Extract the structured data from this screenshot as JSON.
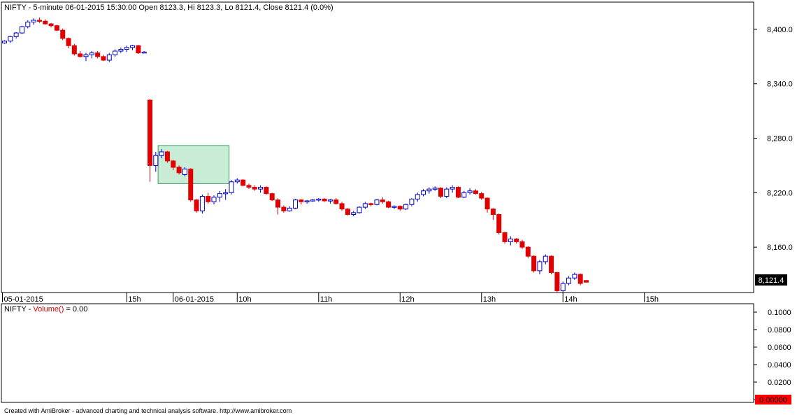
{
  "chart_data": [
    {
      "type": "candlestick",
      "header": "NIFTY - 5-minute 06-01-2015 15:30:00 Open 8123.3, Hi 8123.3, Lo 8121.4, Close 8121.4 (0.0%)",
      "ylim": [
        8110,
        8430
      ],
      "y_ticks": [
        8160,
        8220,
        8280,
        8340,
        8400
      ],
      "y_tick_labels": [
        "8,160.0",
        "8,220.0",
        "8,280.0",
        "8,340.0",
        "8,400.0"
      ],
      "last_price_label": "8,121.4",
      "x_labels": [
        {
          "bar": 0,
          "label": "05-01-2015"
        },
        {
          "bar": 21,
          "label": "15h"
        },
        {
          "bar": 29,
          "label": "06-01-2015"
        },
        {
          "bar": 40,
          "label": "10h"
        },
        {
          "bar": 54,
          "label": "11h"
        },
        {
          "bar": 68,
          "label": "12h"
        },
        {
          "bar": 82,
          "label": "13h"
        },
        {
          "bar": 96,
          "label": "14h"
        },
        {
          "bar": 110,
          "label": "15h"
        }
      ],
      "highlight_box": {
        "start_bar": 27,
        "end_bar": 38,
        "y_low": 8230,
        "y_high": 8272,
        "color": "#c8ecd6",
        "border": "#3aa05f"
      },
      "colors": {
        "up": "#0000c8",
        "down": "#e00000",
        "up_fill": "#ffffff"
      },
      "candles": [
        [
          8385,
          8388,
          8384,
          8387
        ],
        [
          8387,
          8393,
          8385,
          8392
        ],
        [
          8392,
          8397,
          8390,
          8396
        ],
        [
          8396,
          8404,
          8395,
          8403
        ],
        [
          8403,
          8410,
          8401,
          8408
        ],
        [
          8408,
          8412,
          8405,
          8410
        ],
        [
          8410,
          8413,
          8407,
          8409
        ],
        [
          8409,
          8411,
          8405,
          8406
        ],
        [
          8406,
          8407,
          8402,
          8404
        ],
        [
          8404,
          8405,
          8398,
          8399
        ],
        [
          8399,
          8401,
          8388,
          8390
        ],
        [
          8390,
          8391,
          8379,
          8382
        ],
        [
          8382,
          8384,
          8371,
          8373
        ],
        [
          8373,
          8376,
          8369,
          8370
        ],
        [
          8370,
          8374,
          8365,
          8372
        ],
        [
          8372,
          8376,
          8368,
          8374
        ],
        [
          8374,
          8376,
          8368,
          8370
        ],
        [
          8370,
          8372,
          8365,
          8366
        ],
        [
          8366,
          8374,
          8364,
          8372
        ],
        [
          8372,
          8378,
          8370,
          8376
        ],
        [
          8376,
          8380,
          8374,
          8378
        ],
        [
          8378,
          8382,
          8375,
          8380
        ],
        [
          8380,
          8383,
          8377,
          8382
        ],
        [
          8382,
          8383,
          8373,
          8374
        ],
        [
          8375,
          8376,
          8374,
          8375
        ],
        [
          8322,
          8323,
          8232,
          8250
        ],
        [
          8250,
          8265,
          8243,
          8261
        ],
        [
          8261,
          8268,
          8258,
          8265
        ],
        [
          8265,
          8266,
          8253,
          8255
        ],
        [
          8255,
          8256,
          8245,
          8248
        ],
        [
          8248,
          8250,
          8240,
          8242
        ],
        [
          8240,
          8248,
          8238,
          8246
        ],
        [
          8246,
          8247,
          8210,
          8212
        ],
        [
          8212,
          8213,
          8198,
          8200
        ],
        [
          8200,
          8218,
          8197,
          8216
        ],
        [
          8216,
          8220,
          8208,
          8210
        ],
        [
          8210,
          8217,
          8207,
          8215
        ],
        [
          8215,
          8222,
          8210,
          8219
        ],
        [
          8219,
          8224,
          8212,
          8220
        ],
        [
          8220,
          8234,
          8218,
          8232
        ],
        [
          8232,
          8236,
          8230,
          8234
        ],
        [
          8234,
          8235,
          8227,
          8228
        ],
        [
          8228,
          8230,
          8224,
          8226
        ],
        [
          8226,
          8228,
          8222,
          8224
        ],
        [
          8224,
          8228,
          8220,
          8226
        ],
        [
          8226,
          8227,
          8218,
          8219
        ],
        [
          8219,
          8220,
          8211,
          8212
        ],
        [
          8212,
          8214,
          8196,
          8204
        ],
        [
          8204,
          8206,
          8198,
          8200
        ],
        [
          8200,
          8205,
          8199,
          8203
        ],
        [
          8203,
          8213,
          8202,
          8212
        ],
        [
          8212,
          8213,
          8207,
          8210
        ],
        [
          8210,
          8212,
          8208,
          8211
        ],
        [
          8211,
          8213,
          8210,
          8212
        ],
        [
          8212,
          8214,
          8210,
          8213
        ],
        [
          8213,
          8214,
          8210,
          8211
        ],
        [
          8211,
          8213,
          8208,
          8212
        ],
        [
          8212,
          8214,
          8207,
          8208
        ],
        [
          8208,
          8210,
          8200,
          8202
        ],
        [
          8202,
          8203,
          8195,
          8196
        ],
        [
          8196,
          8200,
          8194,
          8198
        ],
        [
          8198,
          8205,
          8197,
          8204
        ],
        [
          8204,
          8210,
          8202,
          8208
        ],
        [
          8208,
          8209,
          8205,
          8207
        ],
        [
          8207,
          8213,
          8206,
          8212
        ],
        [
          8212,
          8215,
          8208,
          8210
        ],
        [
          8210,
          8211,
          8203,
          8204
        ],
        [
          8204,
          8206,
          8202,
          8205
        ],
        [
          8205,
          8206,
          8200,
          8202
        ],
        [
          8202,
          8208,
          8201,
          8207
        ],
        [
          8207,
          8214,
          8205,
          8213
        ],
        [
          8213,
          8220,
          8210,
          8218
        ],
        [
          8218,
          8224,
          8216,
          8222
        ],
        [
          8222,
          8226,
          8219,
          8224
        ],
        [
          8224,
          8227,
          8222,
          8225
        ],
        [
          8225,
          8226,
          8214,
          8216
        ],
        [
          8216,
          8226,
          8214,
          8224
        ],
        [
          8224,
          8228,
          8220,
          8226
        ],
        [
          8226,
          8227,
          8214,
          8215
        ],
        [
          8215,
          8222,
          8214,
          8220
        ],
        [
          8220,
          8225,
          8218,
          8222
        ],
        [
          8222,
          8224,
          8218,
          8219
        ],
        [
          8219,
          8221,
          8212,
          8214
        ],
        [
          8214,
          8215,
          8198,
          8202
        ],
        [
          8202,
          8203,
          8190,
          8196
        ],
        [
          8196,
          8197,
          8174,
          8176
        ],
        [
          8176,
          8177,
          8164,
          8166
        ],
        [
          8166,
          8172,
          8162,
          8169
        ],
        [
          8169,
          8170,
          8164,
          8166
        ],
        [
          8166,
          8168,
          8158,
          8160
        ],
        [
          8160,
          8161,
          8148,
          8150
        ],
        [
          8150,
          8151,
          8132,
          8134
        ],
        [
          8134,
          8146,
          8130,
          8144
        ],
        [
          8144,
          8152,
          8141,
          8150
        ],
        [
          8150,
          8151,
          8130,
          8132
        ],
        [
          8132,
          8133,
          8110,
          8112
        ],
        [
          8112,
          8122,
          8110,
          8120
        ],
        [
          8120,
          8128,
          8118,
          8126
        ],
        [
          8126,
          8132,
          8124,
          8130
        ],
        [
          8130,
          8131,
          8118,
          8120
        ],
        [
          8123.3,
          8123.3,
          8121.4,
          8121.4
        ]
      ]
    },
    {
      "type": "bar",
      "title": "NIFTY - Volume() = 0.00",
      "ylim": [
        0,
        0.1
      ],
      "y_tick_labels": [
        "0.1000",
        "0.0800",
        "0.0600",
        "0.0400",
        "0.0200",
        "0"
      ],
      "last_value_label": "0.00000",
      "values": []
    }
  ],
  "footer": "Created with AmiBroker - advanced charting and technical analysis software. http://www.amibroker.com"
}
